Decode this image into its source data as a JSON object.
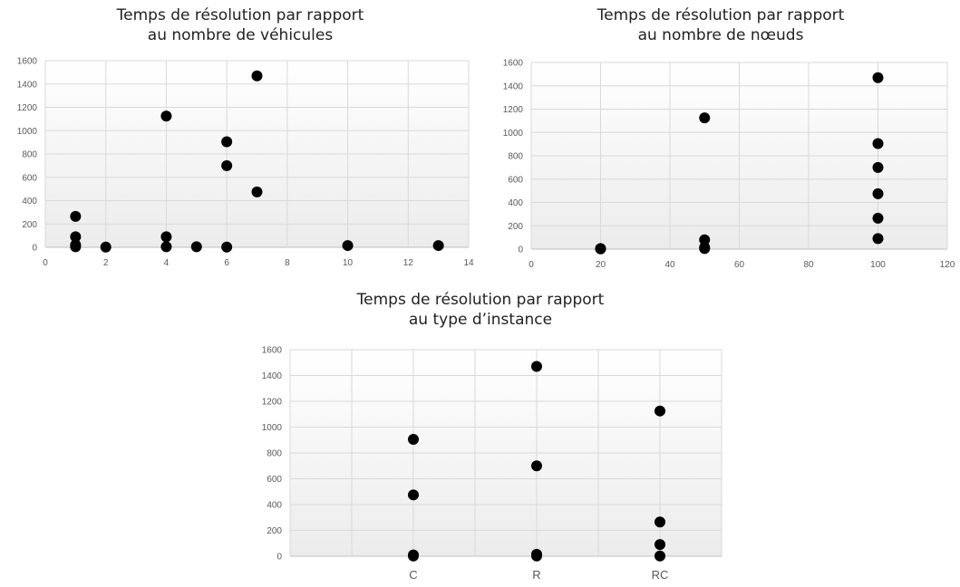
{
  "chart_data": [
    {
      "type": "scatter",
      "title_line1": "Temps de résolution par rapport",
      "title_line2": "au nombre de véhicules",
      "xlabel": "",
      "ylabel": "",
      "xlim": [
        0,
        14
      ],
      "ylim": [
        0,
        1600
      ],
      "x_ticks": [
        0,
        2,
        4,
        6,
        8,
        10,
        12,
        14
      ],
      "y_ticks": [
        0,
        200,
        400,
        600,
        800,
        1000,
        1200,
        1400,
        1600
      ],
      "grid": true,
      "points": [
        {
          "x": 1,
          "y": 265
        },
        {
          "x": 1,
          "y": 90
        },
        {
          "x": 1,
          "y": 20
        },
        {
          "x": 1,
          "y": 5
        },
        {
          "x": 2,
          "y": 2
        },
        {
          "x": 4,
          "y": 1125
        },
        {
          "x": 4,
          "y": 90
        },
        {
          "x": 4,
          "y": 5
        },
        {
          "x": 5,
          "y": 5
        },
        {
          "x": 6,
          "y": 905
        },
        {
          "x": 6,
          "y": 700
        },
        {
          "x": 6,
          "y": 2
        },
        {
          "x": 7,
          "y": 1470
        },
        {
          "x": 7,
          "y": 475
        },
        {
          "x": 10,
          "y": 15
        },
        {
          "x": 13,
          "y": 15
        }
      ]
    },
    {
      "type": "scatter",
      "title_line1": "Temps de résolution par rapport",
      "title_line2": "au nombre de nœuds",
      "xlabel": "",
      "ylabel": "",
      "xlim": [
        0,
        120
      ],
      "ylim": [
        0,
        1600
      ],
      "x_ticks": [
        0,
        20,
        40,
        60,
        80,
        100,
        120
      ],
      "y_ticks": [
        0,
        200,
        400,
        600,
        800,
        1000,
        1200,
        1400,
        1600
      ],
      "grid": true,
      "points": [
        {
          "x": 20,
          "y": 5
        },
        {
          "x": 20,
          "y": 2
        },
        {
          "x": 50,
          "y": 1125
        },
        {
          "x": 50,
          "y": 80
        },
        {
          "x": 50,
          "y": 15
        },
        {
          "x": 50,
          "y": 5
        },
        {
          "x": 100,
          "y": 1470
        },
        {
          "x": 100,
          "y": 905
        },
        {
          "x": 100,
          "y": 700
        },
        {
          "x": 100,
          "y": 475
        },
        {
          "x": 100,
          "y": 265
        },
        {
          "x": 100,
          "y": 90
        }
      ]
    },
    {
      "type": "scatter",
      "title_line1": "Temps de résolution par rapport",
      "title_line2": "au type d’instance",
      "xlabel": "",
      "ylabel": "",
      "categories": [
        "C",
        "R",
        "RC"
      ],
      "ylim": [
        0,
        1600
      ],
      "y_ticks": [
        0,
        200,
        400,
        600,
        800,
        1000,
        1200,
        1400,
        1600
      ],
      "grid": true,
      "points": [
        {
          "category": "C",
          "y": 905
        },
        {
          "category": "C",
          "y": 475
        },
        {
          "category": "C",
          "y": 10
        },
        {
          "category": "C",
          "y": 2
        },
        {
          "category": "R",
          "y": 1470
        },
        {
          "category": "R",
          "y": 700
        },
        {
          "category": "R",
          "y": 15
        },
        {
          "category": "R",
          "y": 2
        },
        {
          "category": "RC",
          "y": 1125
        },
        {
          "category": "RC",
          "y": 265
        },
        {
          "category": "RC",
          "y": 90
        },
        {
          "category": "RC",
          "y": 2
        }
      ]
    }
  ]
}
